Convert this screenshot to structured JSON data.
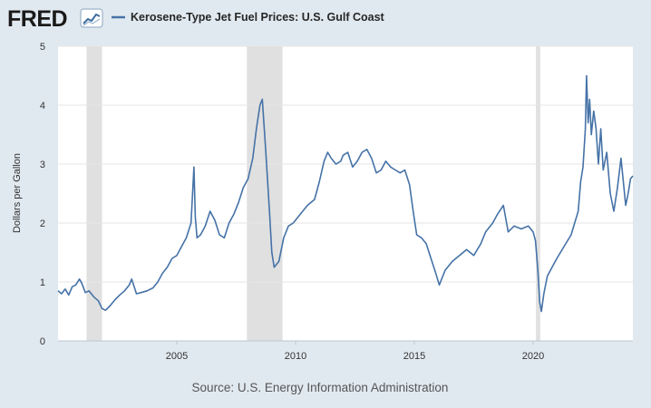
{
  "header": {
    "logo_text": "FRED",
    "logo_icon": "chart-line-icon"
  },
  "chart_data": {
    "type": "line",
    "title": "Kerosene-Type Jet Fuel Prices: U.S. Gulf Coast",
    "xlabel": "",
    "ylabel": "Dollars per Gallon",
    "source": "Source: U.S. Energy Information Administration",
    "xlim": [
      2000.0,
      2024.2
    ],
    "ylim": [
      0,
      5
    ],
    "yticks": [
      "0",
      "1",
      "2",
      "3",
      "4",
      "5"
    ],
    "xticks": [
      "2005",
      "2010",
      "2015",
      "2020"
    ],
    "grid": true,
    "legend": "top-left",
    "line_color": "#4572a7",
    "recession_color": "#e0e0e0",
    "recessions": [
      [
        2001.2,
        2001.85
      ],
      [
        2007.95,
        2009.45
      ],
      [
        2020.12,
        2020.3
      ]
    ],
    "series": [
      {
        "name": "Kerosene-Type Jet Fuel Prices: U.S. Gulf Coast",
        "x": [
          2000.0,
          2000.15,
          2000.3,
          2000.45,
          2000.6,
          2000.75,
          2000.9,
          2001.0,
          2001.15,
          2001.3,
          2001.5,
          2001.7,
          2001.85,
          2002.0,
          2002.2,
          2002.4,
          2002.6,
          2002.8,
          2003.0,
          2003.1,
          2003.3,
          2003.5,
          2003.75,
          2004.0,
          2004.2,
          2004.4,
          2004.6,
          2004.8,
          2005.0,
          2005.2,
          2005.4,
          2005.6,
          2005.72,
          2005.78,
          2005.85,
          2006.0,
          2006.2,
          2006.4,
          2006.6,
          2006.8,
          2007.0,
          2007.2,
          2007.4,
          2007.6,
          2007.8,
          2008.0,
          2008.2,
          2008.35,
          2008.5,
          2008.6,
          2008.75,
          2008.9,
          2009.0,
          2009.1,
          2009.3,
          2009.5,
          2009.7,
          2009.9,
          2010.2,
          2010.5,
          2010.8,
          2011.0,
          2011.2,
          2011.35,
          2011.5,
          2011.7,
          2011.9,
          2012.0,
          2012.2,
          2012.4,
          2012.6,
          2012.8,
          2013.0,
          2013.2,
          2013.4,
          2013.6,
          2013.8,
          2014.0,
          2014.2,
          2014.4,
          2014.6,
          2014.8,
          2014.95,
          2015.1,
          2015.3,
          2015.5,
          2015.7,
          2015.9,
          2016.05,
          2016.3,
          2016.6,
          2016.9,
          2017.2,
          2017.5,
          2017.8,
          2018.0,
          2018.3,
          2018.5,
          2018.75,
          2018.95,
          2019.2,
          2019.5,
          2019.8,
          2020.0,
          2020.1,
          2020.2,
          2020.28,
          2020.35,
          2020.45,
          2020.6,
          2020.8,
          2021.0,
          2021.3,
          2021.6,
          2021.9,
          2022.0,
          2022.1,
          2022.2,
          2022.25,
          2022.32,
          2022.38,
          2022.45,
          2022.55,
          2022.65,
          2022.75,
          2022.85,
          2022.95,
          2023.1,
          2023.25,
          2023.4,
          2023.55,
          2023.7,
          2023.8,
          2023.9,
          2024.0,
          2024.1,
          2024.2
        ],
        "values": [
          0.85,
          0.8,
          0.88,
          0.78,
          0.92,
          0.95,
          1.05,
          0.98,
          0.82,
          0.85,
          0.75,
          0.68,
          0.55,
          0.52,
          0.6,
          0.7,
          0.78,
          0.85,
          0.95,
          1.05,
          0.8,
          0.82,
          0.85,
          0.9,
          1.0,
          1.15,
          1.25,
          1.4,
          1.45,
          1.6,
          1.75,
          2.0,
          2.95,
          2.1,
          1.75,
          1.8,
          1.95,
          2.2,
          2.05,
          1.8,
          1.75,
          2.0,
          2.15,
          2.35,
          2.6,
          2.75,
          3.1,
          3.6,
          4.0,
          4.1,
          3.2,
          2.2,
          1.5,
          1.25,
          1.35,
          1.75,
          1.95,
          2.0,
          2.15,
          2.3,
          2.4,
          2.7,
          3.05,
          3.2,
          3.1,
          3.0,
          3.05,
          3.15,
          3.2,
          2.95,
          3.05,
          3.2,
          3.25,
          3.1,
          2.85,
          2.9,
          3.05,
          2.95,
          2.9,
          2.85,
          2.9,
          2.65,
          2.2,
          1.8,
          1.75,
          1.65,
          1.4,
          1.15,
          0.95,
          1.2,
          1.35,
          1.45,
          1.55,
          1.45,
          1.65,
          1.85,
          2.0,
          2.15,
          2.3,
          1.85,
          1.95,
          1.9,
          1.95,
          1.85,
          1.7,
          1.2,
          0.65,
          0.5,
          0.8,
          1.1,
          1.25,
          1.4,
          1.6,
          1.8,
          2.2,
          2.7,
          2.95,
          3.6,
          4.5,
          3.7,
          4.1,
          3.5,
          3.9,
          3.6,
          3.0,
          3.6,
          2.9,
          3.2,
          2.5,
          2.2,
          2.6,
          3.1,
          2.7,
          2.3,
          2.5,
          2.75,
          2.8
        ]
      }
    ]
  }
}
